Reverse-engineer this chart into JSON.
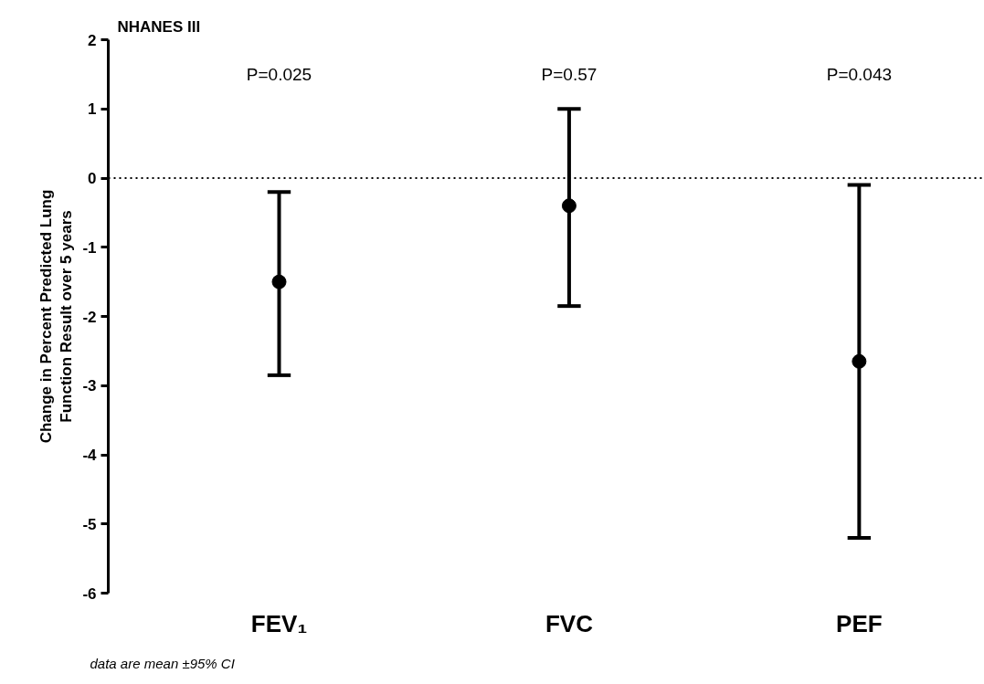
{
  "chart_data": {
    "type": "scatter",
    "title": "NHANES III",
    "ylabel": "Change in Percent Predicted Lung\nFunction Result over 5 years",
    "categories": [
      "FEV₁",
      "FVC",
      "PEF"
    ],
    "series": [
      {
        "color": "#000000",
        "values": [
          -1.5,
          -0.4,
          -2.65
        ],
        "errors": [
          [
            -2.85,
            -0.2
          ],
          [
            -1.85,
            1.0
          ],
          [
            -5.2,
            -0.1
          ]
        ]
      }
    ],
    "ylim": [
      -6,
      2
    ],
    "yticks": [
      -6,
      -5,
      -4,
      -3,
      -2,
      -1,
      0,
      1,
      2
    ],
    "ref_lines": [
      {
        "axis": "y",
        "value": 0,
        "line_style": "dotted",
        "color": "#000000"
      }
    ],
    "annotations": [
      "P=0.025",
      "P=0.57",
      "P=0.043",
      "data are mean ±95% CI"
    ],
    "marker": "circle"
  }
}
